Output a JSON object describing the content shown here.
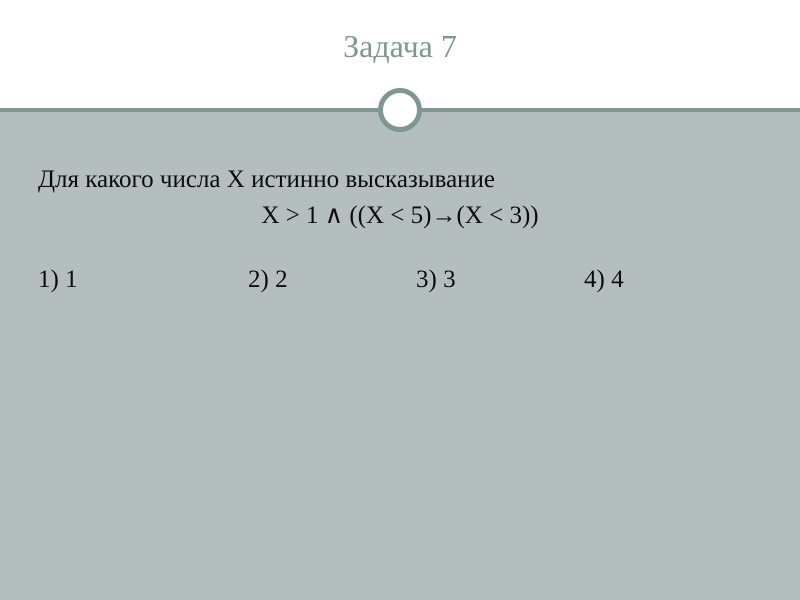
{
  "slide": {
    "title": "Задача 7",
    "title_color": "#7f9693",
    "title_fontsize": 32,
    "accent_color": "#7f9693",
    "divider_thickness": 4,
    "circle_diameter": 44,
    "circle_border_width": 5,
    "header_bg": "#ffffff",
    "body_bg": "#b4bebe",
    "body_height": 490,
    "text_color": "#0c0c0c",
    "body_fontsize": 25,
    "question": "Для какого числа X истинно высказывание",
    "formula": "X > 1 ∧ ((X < 5)→(X < 3))",
    "options": [
      {
        "n": "1)",
        "v": "1"
      },
      {
        "n": "2)",
        "v": "2"
      },
      {
        "n": "3)",
        "v": "3"
      },
      {
        "n": "4)",
        "v": "4"
      }
    ],
    "option_col_widths": [
      210,
      168,
      168,
      120
    ]
  }
}
